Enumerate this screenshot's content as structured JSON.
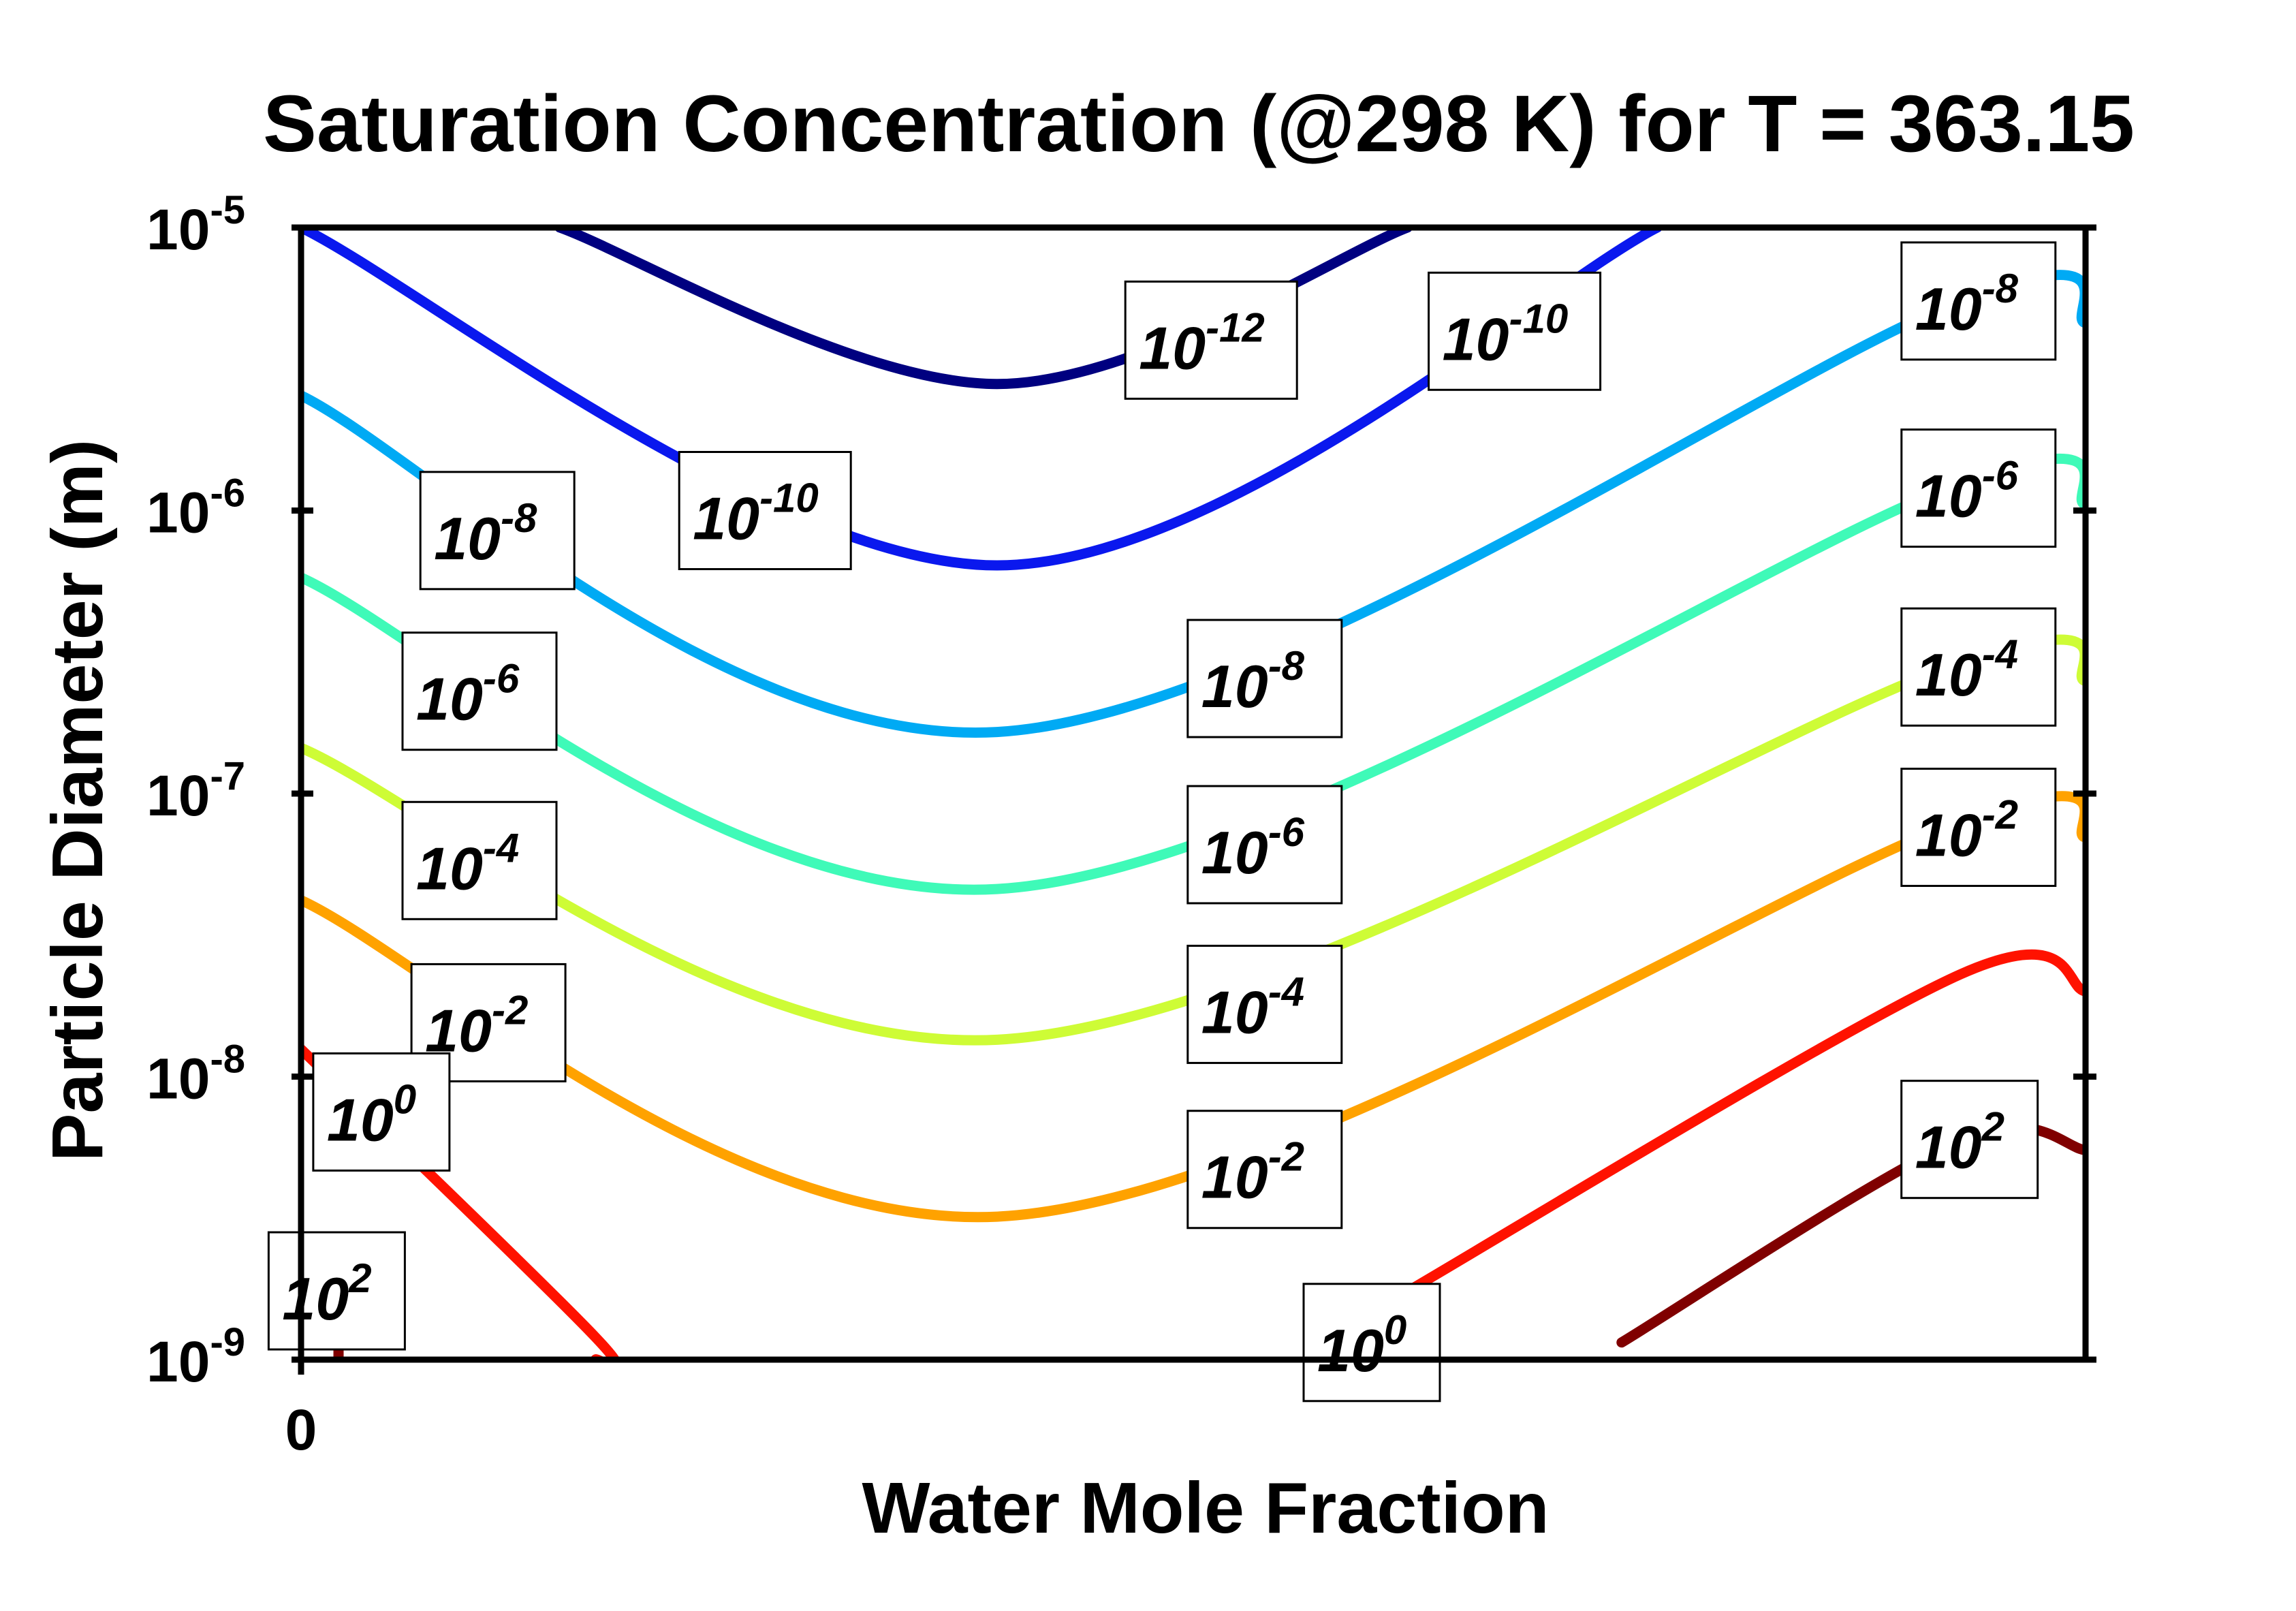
{
  "chart_data": {
    "type": "line",
    "title": "Saturation Concentration (@298 K) for T = 363.15",
    "xlabel": "Water Mole Fraction",
    "ylabel": "Particle Diameter (m)",
    "x_tick_labels": [
      "0"
    ],
    "y_scale": "log",
    "ylim": [
      1e-09,
      1e-05
    ],
    "y_ticks": [
      {
        "value": 1e-09,
        "base": "10",
        "exp": "-9"
      },
      {
        "value": 1e-08,
        "base": "10",
        "exp": "-8"
      },
      {
        "value": 1e-07,
        "base": "10",
        "exp": "-7"
      },
      {
        "value": 1e-06,
        "base": "10",
        "exp": "-6"
      },
      {
        "value": 1e-05,
        "base": "10",
        "exp": "-5"
      }
    ],
    "grid": false,
    "legend": "none",
    "series": [
      {
        "color": "#000080",
        "points": [
          [
            0.145,
            1e-05
          ],
          [
            0.39,
            2.8e-06
          ],
          [
            0.62,
            1e-05
          ]
        ]
      },
      {
        "color": "#0a18ee",
        "points": [
          [
            0.0,
            1e-05
          ],
          [
            0.39,
            6.4e-07
          ],
          [
            0.76,
            1e-05
          ]
        ]
      },
      {
        "color": "#00aaf4",
        "points": [
          [
            0.0,
            2.55e-06
          ],
          [
            0.39,
            1.65e-07
          ],
          [
            0.93,
            5.5e-06
          ],
          [
            1.0,
            4.6e-06
          ]
        ]
      },
      {
        "color": "#3ffab8",
        "points": [
          [
            0.0,
            5.8e-07
          ],
          [
            0.39,
            4.6e-08
          ],
          [
            0.93,
            1.25e-06
          ],
          [
            1.0,
            1.05e-06
          ]
        ]
      },
      {
        "color": "#cefc36",
        "points": [
          [
            0.0,
            1.45e-07
          ],
          [
            0.39,
            1.35e-08
          ],
          [
            0.93,
            2.9e-07
          ],
          [
            1.0,
            2.5e-07
          ]
        ]
      },
      {
        "color": "#ffa200",
        "points": [
          [
            0.0,
            4.2e-08
          ],
          [
            0.39,
            3.2e-09
          ],
          [
            0.93,
            8e-08
          ],
          [
            1.0,
            7e-08
          ]
        ]
      },
      {
        "color": "#ff1200",
        "points": [
          [
            0.0,
            1.25e-08
          ],
          [
            0.165,
            1.2e-09
          ],
          [
            0.165,
            1e-09
          ]
        ]
      },
      {
        "color": "#ff1200",
        "points": [
          [
            0.61,
            1.6e-09
          ],
          [
            0.93,
            2.3e-08
          ],
          [
            1.0,
            2e-08
          ]
        ]
      },
      {
        "color": "#800000",
        "points": [
          [
            0.021,
            1.25e-09
          ],
          [
            0.021,
            1e-09
          ]
        ]
      },
      {
        "color": "#800000",
        "points": [
          [
            0.74,
            1.15e-09
          ],
          [
            0.93,
            6e-09
          ],
          [
            1.0,
            5.5e-09
          ]
        ]
      }
    ],
    "contour_labels": [
      {
        "base": "10",
        "exp": "-12",
        "x": 0.51,
        "y": 4e-06
      },
      {
        "base": "10",
        "exp": "-10",
        "x": 0.68,
        "y": 4.3e-06
      },
      {
        "base": "10",
        "exp": "-8",
        "x": 0.94,
        "y": 5.5e-06
      },
      {
        "base": "10",
        "exp": "-10",
        "x": 0.26,
        "y": 1e-06
      },
      {
        "base": "10",
        "exp": "-8",
        "x": 0.11,
        "y": 8.5e-07
      },
      {
        "base": "10",
        "exp": "-6",
        "x": 0.94,
        "y": 1.2e-06
      },
      {
        "base": "10",
        "exp": "-8",
        "x": 0.54,
        "y": 2.55e-07
      },
      {
        "base": "10",
        "exp": "-6",
        "x": 0.1,
        "y": 2.3e-07
      },
      {
        "base": "10",
        "exp": "-4",
        "x": 0.94,
        "y": 2.8e-07
      },
      {
        "base": "10",
        "exp": "-6",
        "x": 0.54,
        "y": 6.6e-08
      },
      {
        "base": "10",
        "exp": "-4",
        "x": 0.1,
        "y": 5.8e-08
      },
      {
        "base": "10",
        "exp": "-2",
        "x": 0.94,
        "y": 7.6e-08
      },
      {
        "base": "10",
        "exp": "-4",
        "x": 0.54,
        "y": 1.8e-08
      },
      {
        "base": "10",
        "exp": "-2",
        "x": 0.105,
        "y": 1.55e-08
      },
      {
        "base": "10",
        "exp": "0",
        "x": 0.045,
        "y": 7.5e-09
      },
      {
        "base": "10",
        "exp": "-2",
        "x": 0.54,
        "y": 4.7e-09
      },
      {
        "base": "10",
        "exp": "2",
        "x": 0.935,
        "y": 6e-09
      },
      {
        "base": "10",
        "exp": "2",
        "x": 0.02,
        "y": 1.75e-09
      },
      {
        "base": "10",
        "exp": "0",
        "x": 0.6,
        "y": 1.15e-09
      }
    ]
  }
}
